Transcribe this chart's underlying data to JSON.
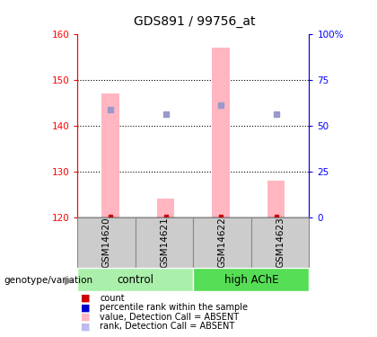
{
  "title": "GDS891 / 99756_at",
  "samples": [
    "GSM14620",
    "GSM14621",
    "GSM14622",
    "GSM14623"
  ],
  "bar_base": 120,
  "bar_tops": [
    147,
    124,
    157,
    128
  ],
  "rank_dots": [
    143.5,
    142.5,
    144.5,
    142.5
  ],
  "left_ylim": [
    120,
    160
  ],
  "right_ylim": [
    0,
    100
  ],
  "left_yticks": [
    120,
    130,
    140,
    150,
    160
  ],
  "right_yticks": [
    0,
    25,
    50,
    75,
    100
  ],
  "right_yticklabels": [
    "0",
    "25",
    "50",
    "75",
    "100%"
  ],
  "bar_color": "#ffb6c1",
  "dot_color": "#9999cc",
  "red_dot_color": "#cc0000",
  "cell_bg": "#cccccc",
  "control_group_color": "#aaf0aa",
  "highache_group_color": "#55dd55",
  "genotype_label": "genotype/variation",
  "legend_items": [
    {
      "color": "#cc0000",
      "label": "count"
    },
    {
      "color": "#0000cc",
      "label": "percentile rank within the sample"
    },
    {
      "color": "#ffb6c1",
      "label": "value, Detection Call = ABSENT"
    },
    {
      "color": "#bbbbee",
      "label": "rank, Detection Call = ABSENT"
    }
  ]
}
